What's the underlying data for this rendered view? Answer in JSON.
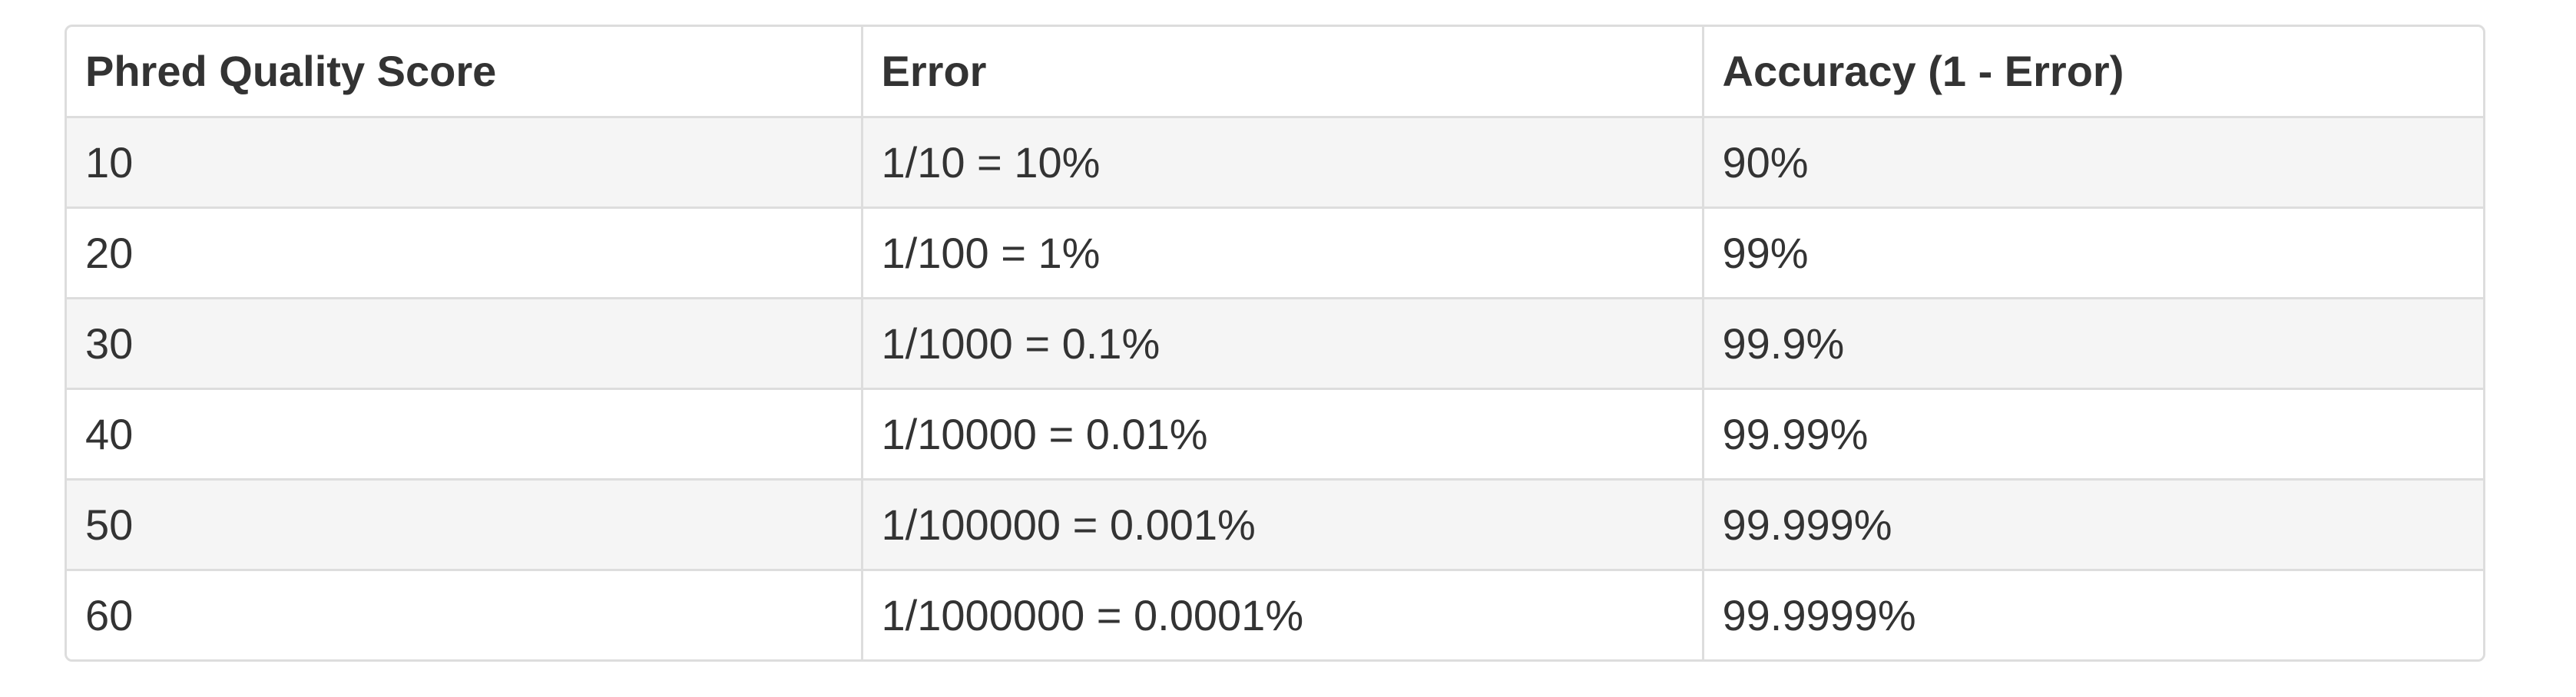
{
  "table": {
    "headers": [
      "Phred Quality Score",
      "Error",
      "Accuracy (1 - Error)"
    ],
    "rows": [
      [
        "10",
        "1/10 = 10%",
        "90%"
      ],
      [
        "20",
        "1/100 = 1%",
        "99%"
      ],
      [
        "30",
        "1/1000 = 0.1%",
        "99.9%"
      ],
      [
        "40",
        "1/10000 = 0.01%",
        "99.99%"
      ],
      [
        "50",
        "1/100000 = 0.001%",
        "99.999%"
      ],
      [
        "60",
        "1/1000000 = 0.0001%",
        "99.9999%"
      ]
    ]
  },
  "colors": {
    "border": "#dddddd",
    "stripe": "#f5f5f5",
    "text": "#333333",
    "background": "#ffffff"
  }
}
